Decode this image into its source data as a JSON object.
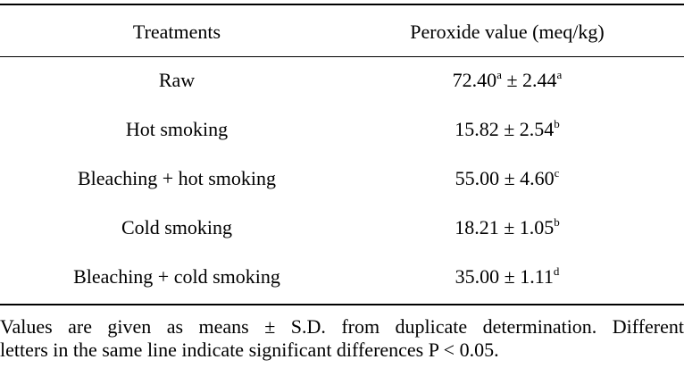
{
  "table": {
    "header": [
      "Treatments",
      "Peroxide value (meq/kg)"
    ],
    "rows": [
      {
        "treatment": "Raw",
        "value": {
          "mean": "72.40",
          "mean_note": "a",
          "pm": "±",
          "sd": "2.44",
          "sd_note": "a"
        }
      },
      {
        "treatment": "Hot smoking",
        "value": {
          "mean": "15.82",
          "pm": "±",
          "sd": "2.54",
          "sd_note": "b"
        }
      },
      {
        "treatment": "Bleaching + hot smoking",
        "value": {
          "mean": "55.00",
          "pm": "±",
          "sd": "4.60",
          "sd_note": "c"
        }
      },
      {
        "treatment": "Cold smoking",
        "value": {
          "mean": "18.21",
          "pm": "±",
          "sd": "1.05",
          "sd_note": "b"
        }
      },
      {
        "treatment": "Bleaching + cold smoking",
        "value": {
          "mean": "35.00",
          "pm": "±",
          "sd": "1.11",
          "sd_note": "d"
        }
      }
    ]
  },
  "footnote": {
    "lines": [
      "Values are given as means ± S.D. from duplicate determination. Different",
      "letters in the same line indicate significant differences P < 0.05."
    ]
  }
}
